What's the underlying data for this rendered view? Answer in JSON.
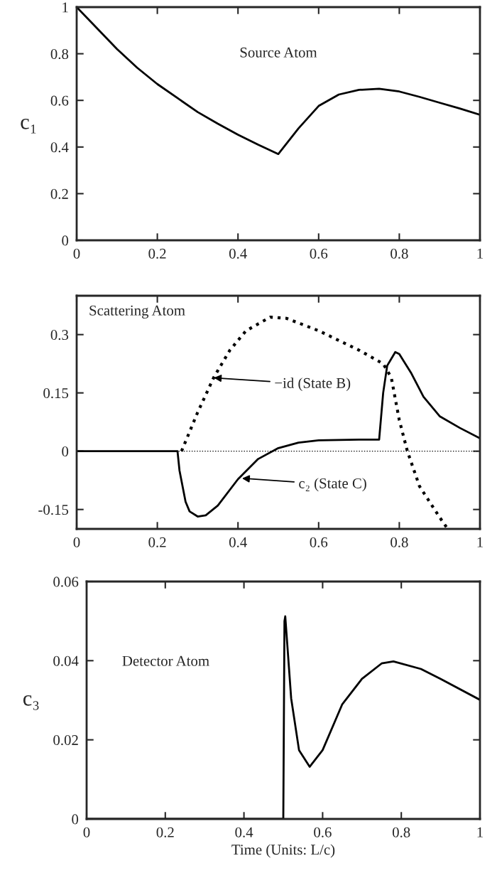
{
  "chart_data": [
    {
      "type": "line",
      "ylabel": "c₁",
      "annotations": [
        "Source Atom"
      ],
      "xlim": [
        0,
        1
      ],
      "ylim": [
        0,
        1
      ],
      "xticks": [
        0,
        0.2,
        0.4,
        0.6,
        0.8,
        1
      ],
      "yticks": [
        0,
        0.2,
        0.4,
        0.6,
        0.8,
        1
      ],
      "grid": false,
      "series": [
        {
          "color": "#000000",
          "line_style": "solid",
          "x": [
            0,
            0.05,
            0.1,
            0.15,
            0.2,
            0.25,
            0.3,
            0.35,
            0.4,
            0.45,
            0.5,
            0.55,
            0.6,
            0.65,
            0.7,
            0.75,
            0.8,
            0.85,
            0.9,
            0.95,
            1
          ],
          "values": [
            1,
            0.91,
            0.82,
            0.74,
            0.67,
            0.61,
            0.55,
            0.5,
            0.453,
            0.41,
            0.37,
            0.48,
            0.576,
            0.625,
            0.645,
            0.65,
            0.638,
            0.615,
            0.59,
            0.565,
            0.538
          ]
        }
      ]
    },
    {
      "type": "line",
      "annotations": [
        "Scattering Atom",
        "−id (State B)",
        "c₂ (State C)"
      ],
      "xlim": [
        0,
        1
      ],
      "ylim": [
        -0.2,
        0.4
      ],
      "xticks": [
        0,
        0.2,
        0.4,
        0.6,
        0.8,
        1
      ],
      "yticks": [
        -0.15,
        0,
        0.15,
        0.3
      ],
      "grid": false,
      "ref_lines": [
        {
          "axis": "y",
          "value": 0,
          "color": "#000000",
          "line_style": "dotted"
        }
      ],
      "series": [
        {
          "color": "#000000",
          "line_style": "solid",
          "x": [
            0,
            0.25,
            0.255,
            0.27,
            0.28,
            0.3,
            0.32,
            0.35,
            0.4,
            0.45,
            0.5,
            0.55,
            0.6,
            0.7,
            0.75,
            0.76,
            0.77,
            0.79,
            0.8,
            0.83,
            0.86,
            0.9,
            0.95,
            1
          ],
          "values": [
            0,
            0,
            -0.05,
            -0.13,
            -0.155,
            -0.168,
            -0.165,
            -0.14,
            -0.072,
            -0.02,
            0.008,
            0.022,
            0.028,
            0.03,
            0.03,
            0.15,
            0.22,
            0.255,
            0.25,
            0.2,
            0.14,
            0.09,
            0.06,
            0.033
          ]
        },
        {
          "color": "#000000",
          "line_style": "dotted",
          "x": [
            0.26,
            0.3,
            0.34,
            0.38,
            0.42,
            0.48,
            0.52,
            0.6,
            0.7,
            0.76,
            0.78,
            0.8,
            0.82,
            0.85,
            0.9,
            0.92
          ],
          "values": [
            0,
            0.1,
            0.19,
            0.26,
            0.31,
            0.345,
            0.342,
            0.31,
            0.26,
            0.225,
            0.19,
            0.08,
            0,
            -0.09,
            -0.17,
            -0.2
          ]
        }
      ]
    },
    {
      "type": "line",
      "ylabel": "c₃",
      "xlabel": "Time (Units: L/c)",
      "annotations": [
        "Detector Atom"
      ],
      "xlim": [
        0,
        1
      ],
      "ylim": [
        0,
        0.06
      ],
      "xticks": [
        0,
        0.2,
        0.4,
        0.6,
        0.8,
        1
      ],
      "yticks": [
        0,
        0.02,
        0.04,
        0.06
      ],
      "grid": false,
      "series": [
        {
          "color": "#000000",
          "line_style": "solid",
          "x": [
            0,
            0.5,
            0.503,
            0.505,
            0.52,
            0.54,
            0.567,
            0.6,
            0.65,
            0.7,
            0.75,
            0.78,
            0.85,
            0.9,
            1
          ],
          "values": [
            0,
            0,
            0.05,
            0.0512,
            0.0305,
            0.0174,
            0.0132,
            0.0174,
            0.029,
            0.0354,
            0.0393,
            0.0398,
            0.0379,
            0.0354,
            0.0301
          ]
        }
      ]
    }
  ]
}
